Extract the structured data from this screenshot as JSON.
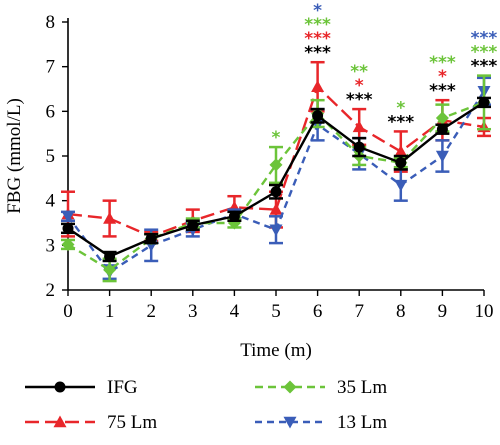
{
  "chart_data": {
    "type": "line",
    "xlabel": "Time (m)",
    "ylabel": "FBG (mmol/L)",
    "xlim": [
      0,
      10
    ],
    "ylim": [
      2,
      8
    ],
    "x": [
      0,
      1,
      2,
      3,
      4,
      5,
      6,
      7,
      8,
      9,
      10
    ],
    "x_ticks": [
      "0",
      "1",
      "2",
      "3",
      "4",
      "5",
      "6",
      "7",
      "8",
      "9",
      "10"
    ],
    "y_ticks": [
      "2",
      "3",
      "4",
      "5",
      "6",
      "7",
      "8"
    ],
    "grid": false,
    "legend_position": "bottom",
    "series": [
      {
        "name": "IFG",
        "color": "#000000",
        "marker": "circle",
        "dash": "solid",
        "values": [
          3.38,
          2.75,
          3.15,
          3.45,
          3.65,
          4.2,
          5.9,
          5.2,
          4.85,
          5.6,
          6.2
        ],
        "errors": [
          0.1,
          0.1,
          0.1,
          0.1,
          0.1,
          0.15,
          0.15,
          0.2,
          0.15,
          0.1,
          0.1
        ]
      },
      {
        "name": "75 Lm",
        "color": "#e8262a",
        "marker": "triangle-up",
        "dash": "long",
        "values": [
          3.7,
          3.6,
          3.2,
          3.55,
          3.85,
          3.8,
          6.55,
          5.65,
          5.1,
          5.8,
          5.65
        ],
        "errors": [
          0.5,
          0.4,
          0.1,
          0.25,
          0.25,
          0.4,
          0.55,
          0.4,
          0.45,
          0.45,
          0.2
        ]
      },
      {
        "name": "35 Lm",
        "color": "#6cc43a",
        "marker": "diamond",
        "dash": "medium",
        "values": [
          3.02,
          2.45,
          3.15,
          3.5,
          3.5,
          4.8,
          5.95,
          5.0,
          4.85,
          5.85,
          6.2
        ],
        "errors": [
          0.1,
          0.25,
          0.1,
          0.1,
          0.1,
          0.4,
          0.3,
          0.2,
          0.1,
          0.3,
          0.6
        ]
      },
      {
        "name": "13 Lm",
        "color": "#3a5db8",
        "marker": "triangle-down",
        "dash": "short",
        "values": [
          3.65,
          2.4,
          3.0,
          3.35,
          3.7,
          3.35,
          5.7,
          5.05,
          4.35,
          5.0,
          6.45
        ],
        "errors": [
          0.1,
          0.15,
          0.35,
          0.15,
          0.1,
          0.3,
          0.35,
          0.35,
          0.35,
          0.35,
          0.3
        ]
      }
    ],
    "annotations": [
      {
        "x": 6,
        "rows": [
          [
            "*",
            "#3a5db8"
          ],
          [
            "***",
            "#6cc43a"
          ],
          [
            "***",
            "#e8262a"
          ],
          [
            "***",
            "#000000"
          ]
        ]
      },
      {
        "x": 7,
        "rows": [
          [
            "**",
            "#6cc43a"
          ],
          [
            "*",
            "#e8262a"
          ],
          [
            "***",
            "#000000"
          ]
        ]
      },
      {
        "x": 8,
        "rows": [
          [
            "*",
            "#6cc43a"
          ],
          [
            "***",
            "#000000"
          ]
        ]
      },
      {
        "x": 9,
        "rows": [
          [
            "***",
            "#6cc43a"
          ],
          [
            "*",
            "#e8262a"
          ],
          [
            "***",
            "#000000"
          ]
        ]
      },
      {
        "x": 10,
        "rows": [
          [
            "***",
            "#3a5db8"
          ],
          [
            "***",
            "#6cc43a"
          ],
          [
            "***",
            "#000000"
          ]
        ]
      },
      {
        "x": 5,
        "rows": [
          [
            "*",
            "#6cc43a"
          ]
        ]
      }
    ]
  }
}
